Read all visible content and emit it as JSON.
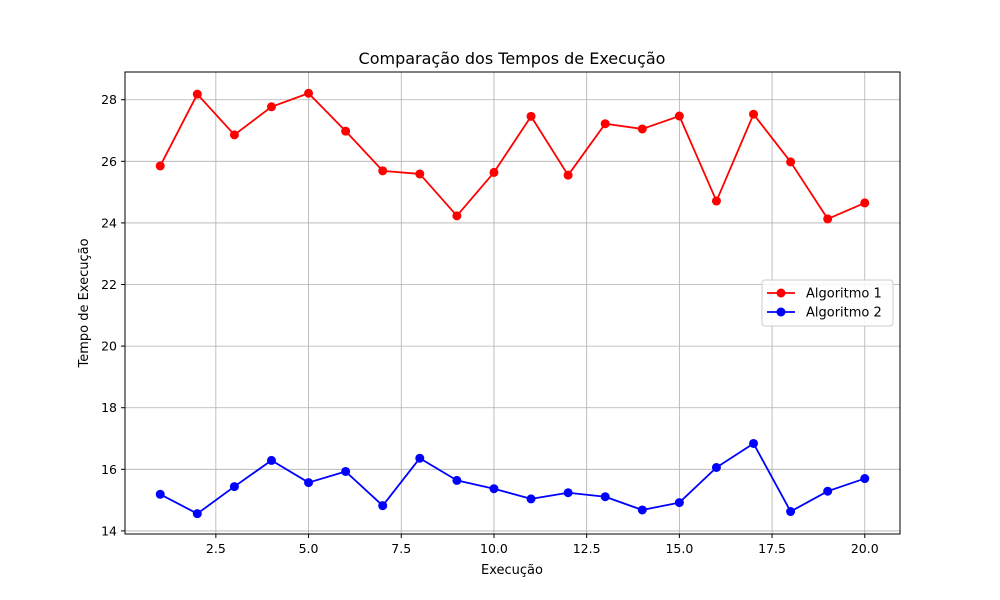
{
  "chart_data": {
    "type": "line",
    "title": "Comparação dos Tempos de Execução",
    "xlabel": "Execução",
    "ylabel": "Tempo de Execução",
    "xlim": [
      0.05,
      20.95
    ],
    "ylim": [
      13.9,
      28.9
    ],
    "xticks": [
      2.5,
      5.0,
      7.5,
      10.0,
      12.5,
      15.0,
      17.5,
      20.0
    ],
    "xtick_labels": [
      "2.5",
      "5.0",
      "7.5",
      "10.0",
      "12.5",
      "15.0",
      "17.5",
      "20.0"
    ],
    "yticks": [
      14,
      16,
      18,
      20,
      22,
      24,
      26,
      28
    ],
    "ytick_labels": [
      "14",
      "16",
      "18",
      "20",
      "22",
      "24",
      "26",
      "28"
    ],
    "grid": true,
    "legend_position": "center-right",
    "x": [
      1,
      2,
      3,
      4,
      5,
      6,
      7,
      8,
      9,
      10,
      11,
      12,
      13,
      14,
      15,
      16,
      17,
      18,
      19,
      20
    ],
    "series": [
      {
        "name": "Algoritmo 1",
        "color": "#ff0000",
        "values": [
          25.85,
          28.18,
          26.86,
          27.77,
          28.21,
          26.98,
          25.69,
          25.59,
          24.23,
          25.64,
          27.46,
          25.55,
          27.22,
          27.05,
          27.47,
          24.71,
          27.53,
          25.98,
          24.13,
          24.65
        ]
      },
      {
        "name": "Algoritmo 2",
        "color": "#0000ff",
        "values": [
          15.19,
          14.56,
          15.44,
          16.29,
          15.57,
          15.93,
          14.82,
          16.36,
          15.64,
          15.37,
          15.04,
          15.24,
          15.11,
          14.68,
          14.92,
          16.06,
          16.84,
          14.63,
          15.29,
          15.7
        ]
      }
    ]
  }
}
